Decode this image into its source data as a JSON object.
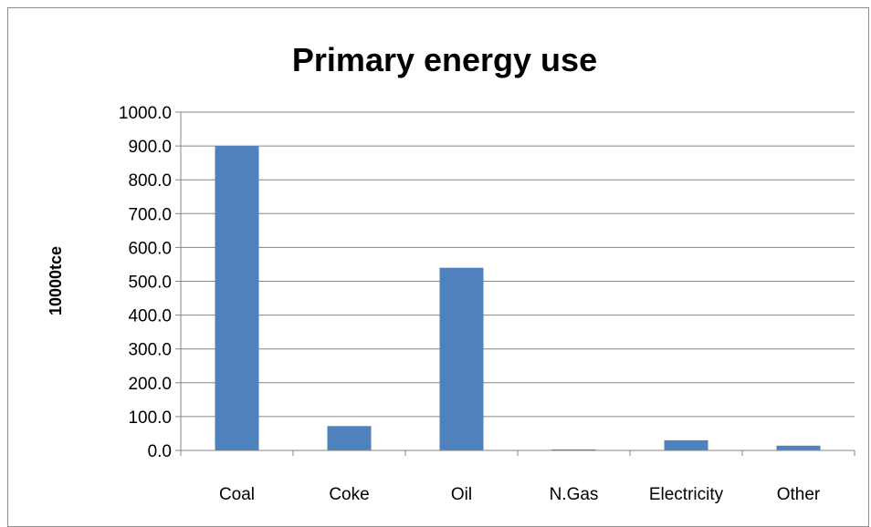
{
  "chart_data": {
    "type": "bar",
    "title": "Primary energy use",
    "xlabel": "",
    "ylabel": "10000tce",
    "categories": [
      "Coal",
      "Coke",
      "Oil",
      "N.Gas",
      "Electricity",
      "Other"
    ],
    "values": [
      900.0,
      72.0,
      540.0,
      3.0,
      30.0,
      14.0
    ],
    "ylim": [
      0,
      1000
    ],
    "yticks": [
      "0.0",
      "100.0",
      "200.0",
      "300.0",
      "400.0",
      "500.0",
      "600.0",
      "700.0",
      "800.0",
      "900.0",
      "1000.0"
    ],
    "grid": true,
    "legend": "none",
    "bar_color": "#4f81bd",
    "grid_color": "#868686"
  }
}
